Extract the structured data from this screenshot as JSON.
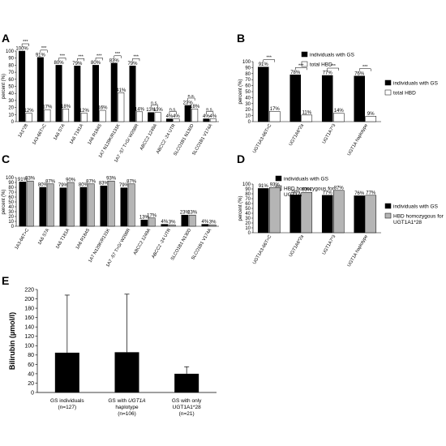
{
  "chart_data": [
    {
      "panel": "A",
      "type": "bar",
      "ylabel": "percent (%)",
      "ylim": [
        0,
        100
      ],
      "yticks": [
        0,
        10,
        20,
        30,
        40,
        50,
        60,
        70,
        80,
        90,
        100
      ],
      "categories": [
        "1A1*28",
        "1A3-66T>C",
        "1A6 S7A",
        "1A6 T181A",
        "1A6 R184S",
        "1A7 N129K/R131K",
        "1A7 -57 T>G/ W208R",
        "ABCC2 1249A",
        "ABCC2 -24 UTR",
        "SLCO1B1 N130D",
        "SLCO1B1 V174A"
      ],
      "series": [
        {
          "name": "individuals with GS",
          "color": "#000000",
          "values": [
            100,
            91,
            80,
            79,
            80,
            83,
            79,
            13,
            4,
            23,
            4
          ],
          "labels": [
            "100%",
            "91%",
            "80%",
            "79%",
            "80%",
            "83%",
            "79%",
            "13%",
            "4%",
            "23%",
            "4%"
          ]
        },
        {
          "name": "total HBD",
          "color": "#ffffff",
          "values": [
            12,
            17,
            18,
            12,
            16,
            41,
            14,
            13,
            4,
            18,
            4
          ],
          "labels": [
            "12%",
            "17%",
            "18%",
            "12%",
            "16%",
            "41%",
            "14%",
            "13%",
            "4%",
            "18%",
            "4%"
          ]
        }
      ],
      "significance": [
        "***",
        "***",
        "***",
        "***",
        "***",
        "***",
        "***",
        "n.s.",
        "n.s.",
        "n.s.",
        "n.s."
      ],
      "legend_position": "top-right"
    },
    {
      "panel": "B",
      "type": "bar",
      "ylabel": "percent (%)",
      "ylim": [
        0,
        100
      ],
      "yticks": [
        0,
        10,
        20,
        30,
        40,
        50,
        60,
        70,
        80,
        90,
        100
      ],
      "categories": [
        "UGT1A3-66T>C",
        "UGT1A6*2a",
        "UGT1A7*3",
        "UGT1A haplotype"
      ],
      "series": [
        {
          "name": "individuals with GS",
          "color": "#000000",
          "values": [
            91,
            78,
            77,
            76
          ],
          "labels": [
            "91%",
            "78%",
            "77%",
            "76%"
          ]
        },
        {
          "name": "total HBD",
          "color": "#ffffff",
          "values": [
            17,
            11,
            14,
            9
          ],
          "labels": [
            "17%",
            "11%",
            "14%",
            "9%"
          ]
        }
      ],
      "significance": [
        "***",
        "***",
        "***",
        "***"
      ],
      "legend_position": "right"
    },
    {
      "panel": "C",
      "type": "bar",
      "ylabel": "percent (%)",
      "ylim": [
        0,
        100
      ],
      "yticks": [
        0,
        10,
        20,
        30,
        40,
        50,
        60,
        70,
        80,
        90,
        100
      ],
      "categories": [
        "1A3-66T>C",
        "1A6 S7A",
        "1A6 T181A",
        "1A6 R184S",
        "1A7 N129K/R131K",
        "1A7 -57 T>G/ W208R",
        "ABCC2 1249A",
        "ABCC2 -24 UTR",
        "SLCO1B1 N130D",
        "SLCO1B1 V174A"
      ],
      "series": [
        {
          "name": "individuals with GS",
          "color": "#000000",
          "values": [
            91,
            80,
            79,
            80,
            83,
            79,
            13,
            4,
            23,
            4
          ],
          "labels": [
            "91%",
            "80%",
            "79%",
            "80%",
            "83%",
            "79%",
            "13%",
            "4%",
            "23%",
            "4%"
          ]
        },
        {
          "name": "HBD homozygous for UGT1A1*28",
          "color": "#b5b5b5",
          "values": [
            93,
            87,
            90,
            87,
            93,
            87,
            17,
            3,
            23,
            3
          ],
          "labels": [
            "93%",
            "87%",
            "90%",
            "87%",
            "93%",
            "87%",
            "17%",
            "3%",
            "23%",
            "3%"
          ]
        }
      ],
      "legend_position": "top-right"
    },
    {
      "panel": "D",
      "type": "bar",
      "ylabel": "percent (%)",
      "ylim": [
        0,
        100
      ],
      "yticks": [
        0,
        10,
        20,
        30,
        40,
        50,
        60,
        70,
        80,
        90,
        100
      ],
      "categories": [
        "UGT1A3-66T>C",
        "UGT1A6*2a",
        "UGT1A7*3",
        "UGT1A haplotype"
      ],
      "series": [
        {
          "name": "individuals with GS",
          "color": "#000000",
          "values": [
            91,
            78,
            77,
            76
          ],
          "labels": [
            "91%",
            "78%",
            "77%",
            "76%"
          ]
        },
        {
          "name": "HBD homozygous for UGT1A1*28",
          "color": "#b5b5b5",
          "values": [
            93,
            83,
            87,
            77
          ],
          "labels": [
            "93%",
            "83%",
            "87%",
            "77%"
          ]
        }
      ],
      "legend_position": "right"
    },
    {
      "panel": "E",
      "type": "bar",
      "ylabel": "Bilirubin (µmol/l)",
      "ylim": [
        0,
        220
      ],
      "yticks": [
        0,
        20,
        40,
        60,
        80,
        100,
        120,
        140,
        160,
        180,
        200,
        220
      ],
      "categories": [
        {
          "line1": "GS individuals",
          "line2": "",
          "line3": "(n=127)"
        },
        {
          "line1": "GS with",
          "italic": "UGT1A",
          "line2": "haplotype",
          "line3": "(n=106)"
        },
        {
          "line1": "GS with only",
          "line2": "UGT1A1*28",
          "line3": "(n=21)"
        }
      ],
      "values": [
        85,
        86,
        40
      ],
      "error_upper": [
        208,
        210,
        55
      ],
      "color": "#000000"
    }
  ],
  "panel_letters": [
    "A",
    "B",
    "C",
    "D",
    "E"
  ]
}
